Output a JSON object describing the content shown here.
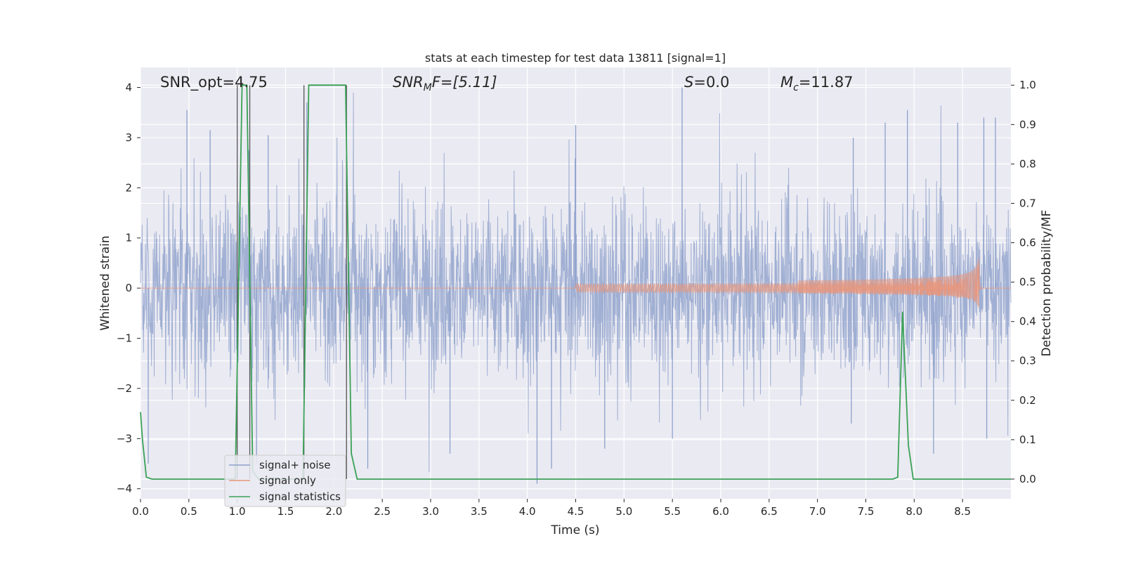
{
  "chart_data": {
    "type": "line",
    "title": "stats at each timestep for test data 13811 [signal=1]",
    "xlabel": "Time (s)",
    "ylabel_left": "Whitened strain",
    "ylabel_right": "Detection probability/MF",
    "xlim": [
      0.0,
      9.0
    ],
    "ylim_left": [
      -4.2,
      4.4
    ],
    "ylim_right": [
      -0.05,
      1.045
    ],
    "x_ticks": [
      "0.0",
      "0.5",
      "1.0",
      "1.5",
      "2.0",
      "2.5",
      "3.0",
      "3.5",
      "4.0",
      "4.5",
      "5.0",
      "5.5",
      "6.0",
      "6.5",
      "7.0",
      "7.5",
      "8.0",
      "8.5"
    ],
    "y_ticks_left": [
      "−4",
      "−3",
      "−2",
      "−1",
      "0",
      "1",
      "2",
      "3",
      "4"
    ],
    "y_ticks_right": [
      "0.0",
      "0.1",
      "0.2",
      "0.3",
      "0.4",
      "0.5",
      "0.6",
      "0.7",
      "0.8",
      "0.9",
      "1.0"
    ],
    "grid": true,
    "legend_position": "lower-left",
    "annotations": {
      "snr_opt": "SNR_opt=4.75",
      "snr_mf_main": "SNR",
      "snr_mf_sub": "M",
      "snr_mf_rest": "F=[5.11]",
      "s_main": "S",
      "s_rest": "=0.0",
      "mc_main": "M",
      "mc_sub": "c",
      "mc_rest": "=11.87"
    },
    "series": [
      {
        "name": "signal+ noise",
        "axis": "left",
        "color": "#8da0cb",
        "description_values": "whitened noisy strain, roughly within ±2.5 with spikes to ±4",
        "spikes": [
          [
            0.48,
            3.55
          ],
          [
            0.72,
            3.15
          ],
          [
            1.12,
            2.75
          ],
          [
            1.32,
            3.05
          ],
          [
            1.72,
            3.7
          ],
          [
            4.5,
            3.25
          ],
          [
            5.6,
            4.0
          ],
          [
            7.37,
            3.0
          ],
          [
            7.7,
            3.3
          ],
          [
            7.93,
            3.55
          ],
          [
            8.45,
            3.3
          ],
          [
            8.72,
            3.4
          ],
          [
            8.84,
            3.4
          ],
          [
            0.08,
            -3.5
          ],
          [
            1.2,
            -3.5
          ],
          [
            2.35,
            -3.6
          ],
          [
            3.2,
            -3.3
          ],
          [
            4.1,
            -3.9
          ],
          [
            4.25,
            -3.6
          ],
          [
            4.8,
            -3.2
          ],
          [
            5.5,
            -3.0
          ],
          [
            7.35,
            -2.7
          ],
          [
            8.2,
            -3.3
          ],
          [
            8.75,
            -3.0
          ]
        ]
      },
      {
        "name": "signal only",
        "axis": "left",
        "color": "#e8967b",
        "chirp": {
          "start": 4.5,
          "merger": 8.67,
          "peak_amplitude": 0.85
        }
      },
      {
        "name": "signal statistics",
        "axis": "right",
        "color": "#3aa156",
        "x": [
          0.0,
          0.02,
          0.06,
          0.12,
          0.98,
          1.05,
          1.1,
          1.16,
          1.22,
          1.68,
          1.74,
          2.12,
          2.18,
          2.24,
          7.78,
          7.83,
          7.88,
          7.94,
          7.99,
          9.0
        ],
        "values": [
          0.17,
          0.1,
          0.005,
          0.0,
          0.0,
          1.0,
          1.0,
          0.02,
          0.0,
          0.0,
          1.0,
          1.0,
          0.065,
          0.0,
          0.0,
          0.005,
          0.425,
          0.085,
          0.0,
          0.0
        ]
      }
    ],
    "vertical_markers": {
      "color": "#555555",
      "x": [
        1.0,
        1.13,
        1.69,
        2.13
      ],
      "right_value_top": 1.0,
      "right_value_bottom": 0.0
    }
  }
}
